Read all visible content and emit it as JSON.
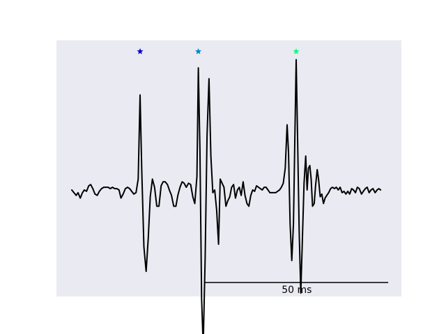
{
  "chart_data": {
    "type": "line",
    "title": "",
    "xlabel": "",
    "ylabel": "",
    "axes_visible": false,
    "grid": false,
    "background_color": "#EAEAF2",
    "trace_color": "#000000",
    "x_unit": "ms",
    "xlim": [
      0,
      115
    ],
    "ylim": [
      -1.15,
      1.05
    ],
    "series": [
      {
        "values": [
          [
            0.0,
            0.0
          ],
          [
            0.8,
            -0.02
          ],
          [
            1.6,
            -0.04
          ],
          [
            2.3,
            -0.02
          ],
          [
            3.1,
            -0.06
          ],
          [
            3.9,
            -0.02
          ],
          [
            4.6,
            0.0
          ],
          [
            5.4,
            -0.01
          ],
          [
            6.2,
            0.03
          ],
          [
            6.9,
            0.04
          ],
          [
            7.7,
            0.01
          ],
          [
            8.5,
            -0.03
          ],
          [
            9.3,
            -0.04
          ],
          [
            10.1,
            -0.01
          ],
          [
            10.9,
            0.01
          ],
          [
            11.7,
            0.02
          ],
          [
            12.5,
            0.02
          ],
          [
            13.3,
            0.02
          ],
          [
            14.1,
            0.01
          ],
          [
            14.9,
            0.02
          ],
          [
            15.7,
            0.01
          ],
          [
            16.5,
            0.01
          ],
          [
            17.3,
            0.0
          ],
          [
            18.0,
            -0.06
          ],
          [
            18.8,
            -0.03
          ],
          [
            19.6,
            0.01
          ],
          [
            20.4,
            0.02
          ],
          [
            21.2,
            0.01
          ],
          [
            21.9,
            -0.01
          ],
          [
            22.7,
            -0.03
          ],
          [
            23.5,
            -0.02
          ],
          [
            24.3,
            0.08
          ],
          [
            25.0,
            0.7
          ],
          [
            25.6,
            0.15
          ],
          [
            26.4,
            -0.42
          ],
          [
            27.2,
            -0.6
          ],
          [
            28.0,
            -0.35
          ],
          [
            28.7,
            -0.05
          ],
          [
            29.5,
            0.08
          ],
          [
            30.3,
            0.02
          ],
          [
            31.1,
            -0.12
          ],
          [
            31.9,
            -0.12
          ],
          [
            32.7,
            0.03
          ],
          [
            33.4,
            0.06
          ],
          [
            34.2,
            0.06
          ],
          [
            35.0,
            0.04
          ],
          [
            35.7,
            0.0
          ],
          [
            36.5,
            -0.04
          ],
          [
            37.3,
            -0.12
          ],
          [
            38.1,
            -0.12
          ],
          [
            38.8,
            -0.04
          ],
          [
            39.6,
            0.02
          ],
          [
            40.4,
            0.06
          ],
          [
            41.1,
            0.05
          ],
          [
            41.9,
            0.02
          ],
          [
            42.7,
            0.05
          ],
          [
            43.5,
            0.04
          ],
          [
            44.3,
            -0.05
          ],
          [
            45.0,
            -0.1
          ],
          [
            45.8,
            0.1
          ],
          [
            46.3,
            0.9
          ],
          [
            46.9,
            0.3
          ],
          [
            47.5,
            -0.8
          ],
          [
            48.1,
            -1.15
          ],
          [
            48.8,
            -0.5
          ],
          [
            49.5,
            0.4
          ],
          [
            50.2,
            0.82
          ],
          [
            50.9,
            0.25
          ],
          [
            51.6,
            -0.02
          ],
          [
            52.3,
            0.0
          ],
          [
            53.0,
            -0.15
          ],
          [
            53.7,
            -0.4
          ],
          [
            54.3,
            0.08
          ],
          [
            55.0,
            0.05
          ],
          [
            55.7,
            0.02
          ],
          [
            56.4,
            -0.12
          ],
          [
            57.1,
            -0.08
          ],
          [
            57.8,
            -0.05
          ],
          [
            58.5,
            0.02
          ],
          [
            59.2,
            0.04
          ],
          [
            59.9,
            -0.06
          ],
          [
            60.6,
            0.0
          ],
          [
            61.3,
            0.02
          ],
          [
            62.0,
            -0.04
          ],
          [
            62.7,
            0.06
          ],
          [
            63.4,
            -0.04
          ],
          [
            64.1,
            -0.1
          ],
          [
            64.8,
            -0.12
          ],
          [
            65.5,
            -0.04
          ],
          [
            66.2,
            0.0
          ],
          [
            66.9,
            -0.01
          ],
          [
            67.6,
            0.03
          ],
          [
            68.3,
            0.02
          ],
          [
            69.0,
            0.01
          ],
          [
            69.7,
            0.0
          ],
          [
            70.4,
            0.02
          ],
          [
            71.1,
            0.02
          ],
          [
            71.8,
            0.0
          ],
          [
            72.5,
            -0.02
          ],
          [
            73.2,
            -0.02
          ],
          [
            73.9,
            -0.02
          ],
          [
            74.6,
            -0.02
          ],
          [
            75.3,
            -0.01
          ],
          [
            76.0,
            0.0
          ],
          [
            76.7,
            0.02
          ],
          [
            77.4,
            0.05
          ],
          [
            78.1,
            0.16
          ],
          [
            78.8,
            0.48
          ],
          [
            79.3,
            0.28
          ],
          [
            79.9,
            -0.25
          ],
          [
            80.5,
            -0.52
          ],
          [
            81.1,
            -0.25
          ],
          [
            81.6,
            0.35
          ],
          [
            82.1,
            0.96
          ],
          [
            82.6,
            0.42
          ],
          [
            83.2,
            -0.3
          ],
          [
            83.8,
            -0.76
          ],
          [
            84.4,
            -0.35
          ],
          [
            85.0,
            0.05
          ],
          [
            85.6,
            0.25
          ],
          [
            86.1,
            0.0
          ],
          [
            86.6,
            0.16
          ],
          [
            87.1,
            0.18
          ],
          [
            87.6,
            0.08
          ],
          [
            88.1,
            -0.12
          ],
          [
            88.7,
            -0.1
          ],
          [
            89.2,
            0.03
          ],
          [
            89.8,
            0.15
          ],
          [
            90.3,
            0.08
          ],
          [
            90.9,
            -0.05
          ],
          [
            91.5,
            -0.03
          ],
          [
            92.1,
            -0.1
          ],
          [
            92.7,
            -0.06
          ],
          [
            93.3,
            -0.04
          ],
          [
            94.0,
            -0.02
          ],
          [
            94.7,
            0.01
          ],
          [
            95.4,
            0.02
          ],
          [
            96.1,
            0.01
          ],
          [
            96.8,
            0.02
          ],
          [
            97.5,
            0.0
          ],
          [
            98.2,
            0.02
          ],
          [
            98.9,
            -0.02
          ],
          [
            99.6,
            -0.01
          ],
          [
            100.3,
            -0.03
          ],
          [
            101.0,
            -0.01
          ],
          [
            101.7,
            -0.03
          ],
          [
            102.4,
            0.01
          ],
          [
            103.1,
            0.0
          ],
          [
            103.8,
            -0.02
          ],
          [
            104.5,
            0.02
          ],
          [
            105.2,
            0.01
          ],
          [
            106.0,
            -0.03
          ],
          [
            106.7,
            -0.01
          ],
          [
            107.4,
            0.01
          ],
          [
            108.1,
            0.02
          ],
          [
            108.8,
            -0.02
          ],
          [
            109.5,
            0.0
          ],
          [
            110.2,
            0.01
          ],
          [
            111.0,
            -0.02
          ],
          [
            111.7,
            0.0
          ],
          [
            112.4,
            0.01
          ],
          [
            113.0,
            0.0
          ]
        ]
      }
    ],
    "markers": [
      {
        "x": 25.0,
        "shape": "star",
        "color": "#0000CC"
      },
      {
        "x": 46.3,
        "shape": "star",
        "color": "#0088CC"
      },
      {
        "x": 82.1,
        "shape": "star",
        "color": "#00FF7F"
      }
    ],
    "scale_bar": {
      "x_start": 48.8,
      "length": 67.0,
      "label": "50 ms"
    }
  }
}
